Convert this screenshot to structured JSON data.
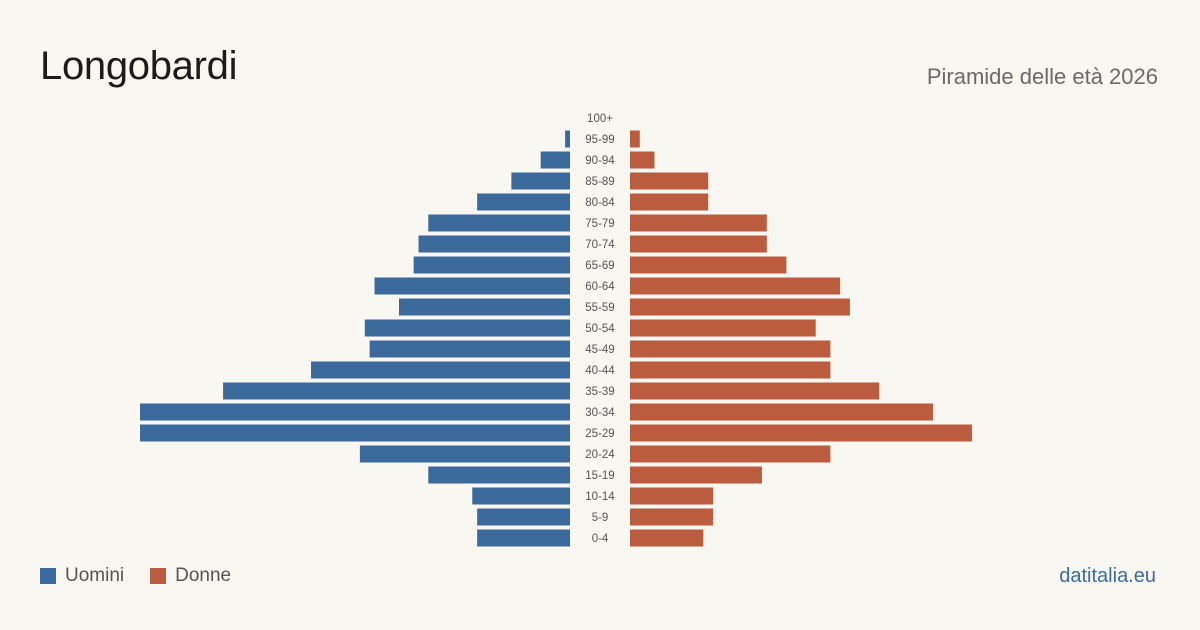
{
  "title": "Longobardi",
  "subtitle": "Piramide delle età 2026",
  "source": "datitalia.eu",
  "colors": {
    "men": "#3c6a9c",
    "women": "#bb5c3e",
    "background": "#f9f7f2"
  },
  "legend": {
    "men": "Uomini",
    "women": "Donne"
  },
  "chart_data": {
    "type": "bar",
    "orientation": "horizontal-pyramid",
    "categories": [
      "100+",
      "95-99",
      "90-94",
      "85-89",
      "80-84",
      "75-79",
      "70-74",
      "65-69",
      "60-64",
      "55-59",
      "50-54",
      "45-49",
      "40-44",
      "35-39",
      "30-34",
      "25-29",
      "20-24",
      "15-19",
      "10-14",
      "5-9",
      "0-4"
    ],
    "series": [
      {
        "name": "Uomini",
        "values": [
          0,
          1,
          6,
          12,
          19,
          29,
          31,
          32,
          40,
          35,
          42,
          41,
          53,
          71,
          88,
          88,
          43,
          29,
          20,
          19,
          19
        ]
      },
      {
        "name": "Donne",
        "values": [
          0,
          2,
          5,
          16,
          16,
          28,
          28,
          32,
          43,
          45,
          38,
          41,
          41,
          51,
          62,
          70,
          41,
          27,
          17,
          17,
          15
        ]
      }
    ]
  }
}
